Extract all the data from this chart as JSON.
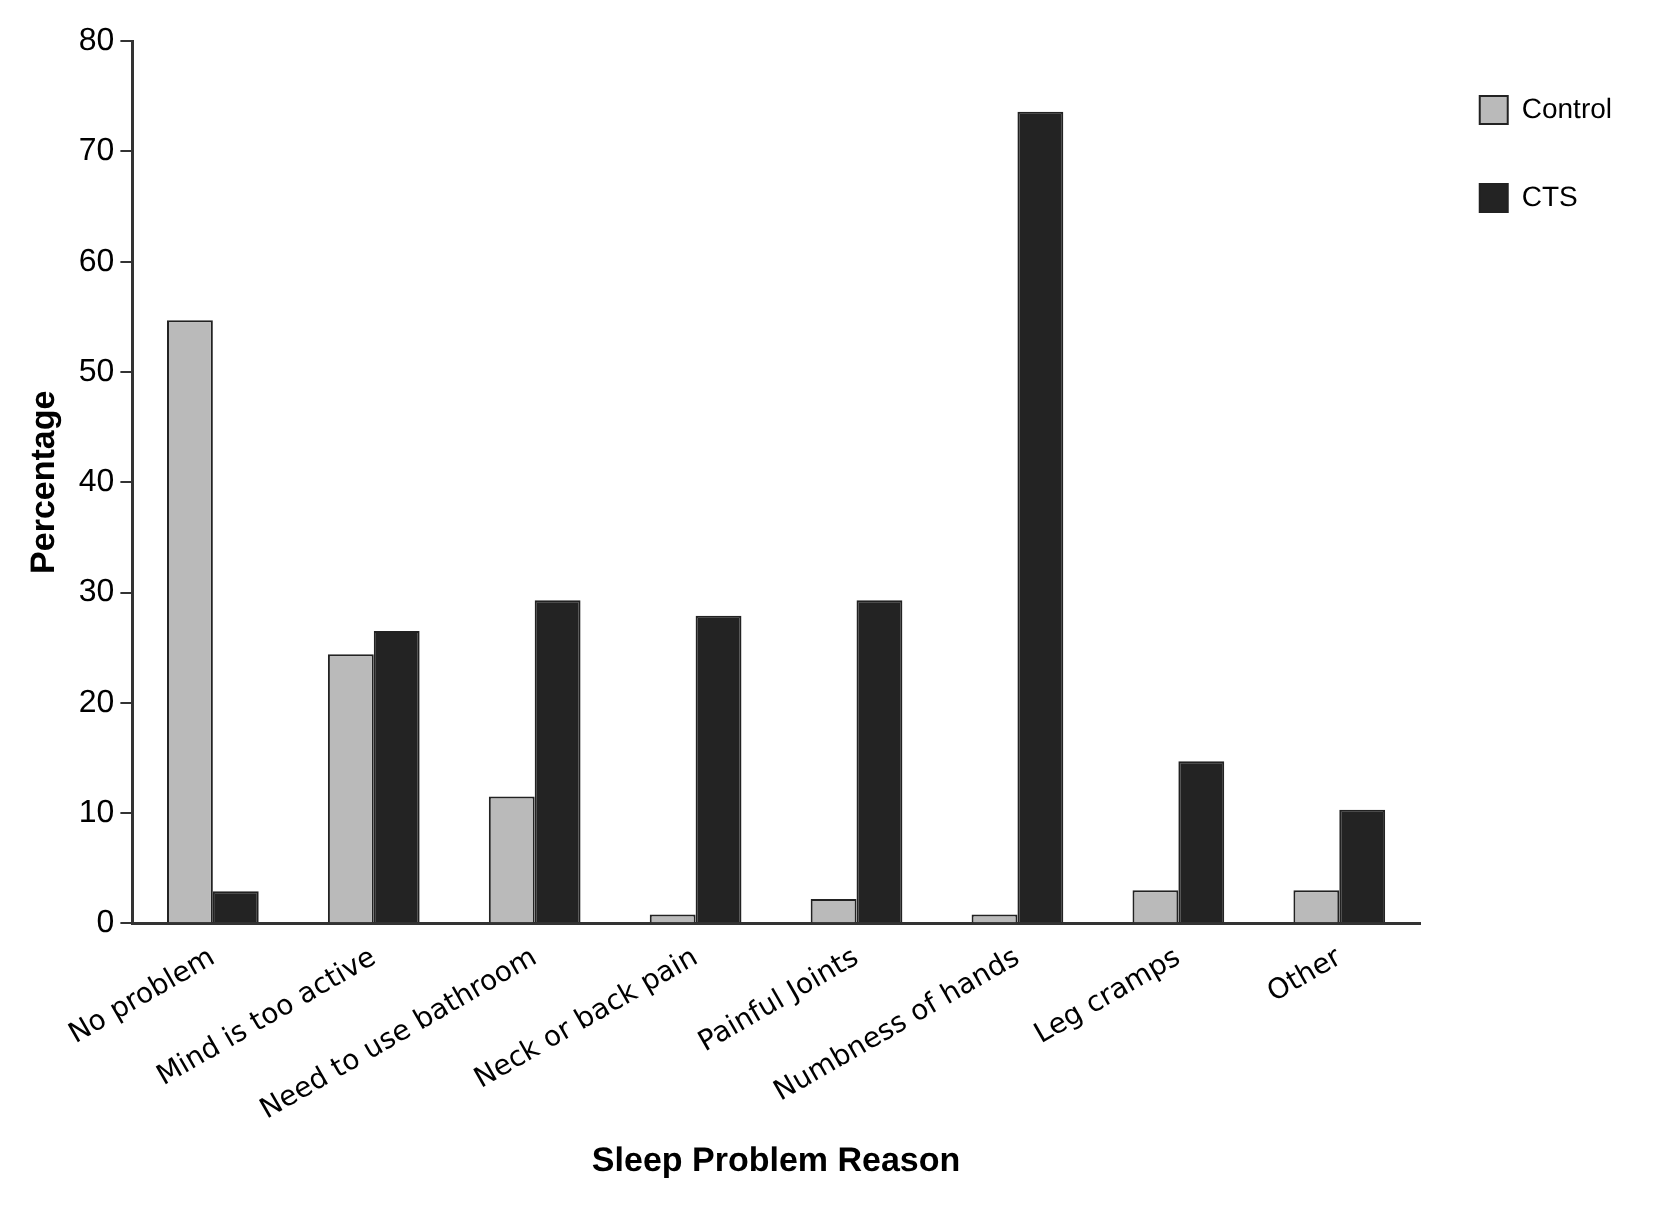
{
  "chart_data": {
    "type": "bar",
    "xlabel": "Sleep Problem Reason",
    "ylabel": "Percentage",
    "categories": [
      "No problem",
      "Mind is too active",
      "Need to use bathroom",
      "Neck or back pain",
      "Painful Joints",
      "Numbness of hands",
      "Leg cramps",
      "Other"
    ],
    "series": [
      {
        "name": "Control",
        "color": "#bababa",
        "values": [
          54.7,
          24.4,
          11.5,
          0.8,
          2.2,
          0.8,
          3.0,
          3.0
        ]
      },
      {
        "name": "CTS",
        "color": "#232323",
        "values": [
          2.9,
          26.5,
          29.3,
          27.9,
          29.3,
          73.6,
          14.7,
          10.3
        ]
      }
    ],
    "ylim": [
      0,
      80
    ],
    "yticks": [
      0,
      10,
      20,
      30,
      40,
      50,
      60,
      70,
      80
    ],
    "grid": false,
    "legend": "top right"
  }
}
